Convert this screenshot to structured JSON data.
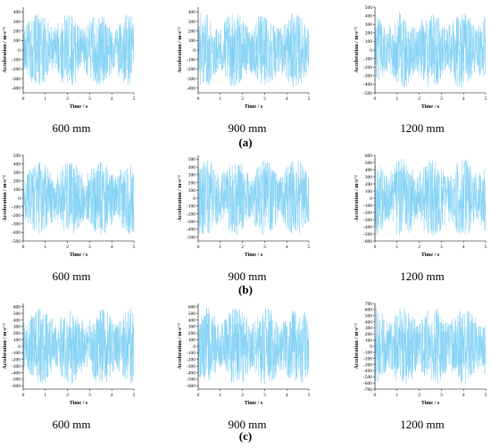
{
  "colors": {
    "signal": "#7fd0f5",
    "axis": "#000000"
  },
  "chart_data": [
    {
      "type": "line",
      "row": "a",
      "caption": "600 mm",
      "xlabel": "Time / s",
      "ylabel": "Acceleration / m·s⁻²",
      "xlim": [
        0,
        5
      ],
      "ylim": [
        -450,
        450
      ],
      "xticks": [
        0,
        1,
        2,
        3,
        4,
        5
      ],
      "yticks": [
        -400,
        -300,
        -200,
        -100,
        0,
        100,
        200,
        300,
        400
      ],
      "amplitude": 380
    },
    {
      "type": "line",
      "row": "a",
      "caption": "900 mm",
      "xlabel": "Time / s",
      "ylabel": "Acceleration / m·s⁻²",
      "xlim": [
        0,
        5
      ],
      "ylim": [
        -450,
        450
      ],
      "xticks": [
        0,
        1,
        2,
        3,
        4,
        5
      ],
      "yticks": [
        -400,
        -300,
        -200,
        -100,
        0,
        100,
        200,
        300,
        400
      ],
      "amplitude": 390
    },
    {
      "type": "line",
      "row": "a",
      "caption": "1200 mm",
      "xlabel": "Time / s",
      "ylabel": "Acceleration / m·s⁻²",
      "xlim": [
        0,
        5
      ],
      "ylim": [
        -500,
        500
      ],
      "xticks": [
        0,
        1,
        2,
        3,
        4,
        5
      ],
      "yticks": [
        -500,
        -400,
        -300,
        -200,
        -100,
        0,
        100,
        200,
        300,
        400,
        500
      ],
      "amplitude": 450
    },
    {
      "type": "line",
      "row": "b",
      "caption": "600 mm",
      "xlabel": "Time / s",
      "ylabel": "Acceleration / m·s⁻²",
      "xlim": [
        0,
        5
      ],
      "ylim": [
        -500,
        500
      ],
      "xticks": [
        0,
        1,
        2,
        3,
        4,
        5
      ],
      "yticks": [
        -500,
        -400,
        -300,
        -200,
        -100,
        0,
        100,
        200,
        300,
        400,
        500
      ],
      "amplitude": 430
    },
    {
      "type": "line",
      "row": "b",
      "caption": "900 mm",
      "xlabel": "Time / s",
      "ylabel": "Acceleration / m·s⁻²",
      "xlim": [
        0,
        5
      ],
      "ylim": [
        -550,
        550
      ],
      "xticks": [
        0,
        1,
        2,
        3,
        4,
        5
      ],
      "yticks": [
        -500,
        -400,
        -300,
        -200,
        -100,
        0,
        100,
        200,
        300,
        400,
        500
      ],
      "amplitude": 490
    },
    {
      "type": "line",
      "row": "b",
      "caption": "1200 mm",
      "xlabel": "Time / s",
      "ylabel": "Acceleration / m·s⁻²",
      "xlim": [
        0,
        5
      ],
      "ylim": [
        -600,
        600
      ],
      "xticks": [
        0,
        1,
        2,
        3,
        4,
        5
      ],
      "yticks": [
        -600,
        -500,
        -400,
        -300,
        -200,
        -100,
        0,
        100,
        200,
        300,
        400,
        500,
        600
      ],
      "amplitude": 560
    },
    {
      "type": "line",
      "row": "c",
      "caption": "600 mm",
      "xlabel": "Time / s",
      "ylabel": "Acceleration / m·s⁻²",
      "xlim": [
        0,
        5
      ],
      "ylim": [
        -650,
        650
      ],
      "xticks": [
        0,
        1,
        2,
        3,
        4,
        5
      ],
      "yticks": [
        -600,
        -500,
        -400,
        -300,
        -200,
        -100,
        0,
        100,
        200,
        300,
        400,
        500,
        600
      ],
      "amplitude": 580
    },
    {
      "type": "line",
      "row": "c",
      "caption": "900 mm",
      "xlabel": "Time / s",
      "ylabel": "Acceleration / m·s⁻²",
      "xlim": [
        0,
        5
      ],
      "ylim": [
        -650,
        650
      ],
      "xticks": [
        0,
        1,
        2,
        3,
        4,
        5
      ],
      "yticks": [
        -600,
        -500,
        -400,
        -300,
        -200,
        -100,
        0,
        100,
        200,
        300,
        400,
        500,
        600
      ],
      "amplitude": 600
    },
    {
      "type": "line",
      "row": "c",
      "caption": "1200 mm",
      "xlabel": "Time / s",
      "ylabel": "Acceleration / m·s⁻²",
      "xlim": [
        0,
        5
      ],
      "ylim": [
        -700,
        700
      ],
      "xticks": [
        0,
        1,
        2,
        3,
        4,
        5
      ],
      "yticks": [
        -700,
        -600,
        -500,
        -400,
        -300,
        -200,
        -100,
        0,
        100,
        200,
        300,
        400,
        500,
        600,
        700
      ],
      "amplitude": 650
    }
  ],
  "row_labels": [
    "(a)",
    "(b)",
    "(c)"
  ]
}
